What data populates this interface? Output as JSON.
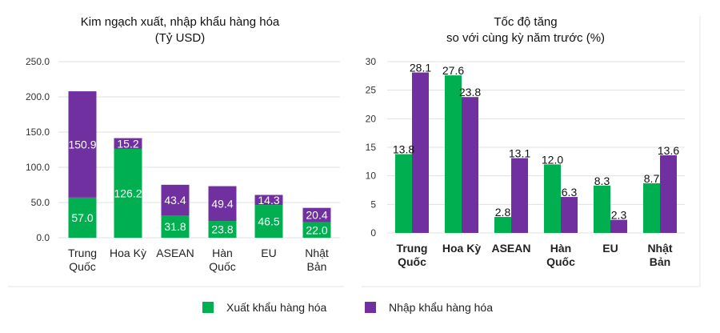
{
  "colors": {
    "export": "#00b050",
    "import": "#7030a0",
    "grid": "#e0e0e0"
  },
  "legend": {
    "export_label": "Xuất khẩu hàng hóa",
    "import_label": "Nhập khẩu hàng hóa",
    "placement": "bottom"
  },
  "chart_data": [
    {
      "type": "bar",
      "stacked": true,
      "title": [
        "Kim ngạch xuất, nhập khẩu hàng hóa",
        "(Tỷ USD)"
      ],
      "categories": [
        [
          "Trung",
          "Quốc"
        ],
        [
          "Hoa Kỳ"
        ],
        [
          "ASEAN"
        ],
        [
          "Hàn",
          "Quốc"
        ],
        [
          "EU"
        ],
        [
          "Nhật",
          "Bản"
        ]
      ],
      "series": [
        {
          "name": "Xuất khẩu hàng hóa",
          "values": [
            57.0,
            126.2,
            31.8,
            23.8,
            46.5,
            22.0
          ]
        },
        {
          "name": "Nhập khẩu hàng hóa",
          "values": [
            150.9,
            15.2,
            43.4,
            49.4,
            14.3,
            20.4
          ]
        }
      ],
      "ylim": [
        0,
        250
      ],
      "yticks": [
        "0.0",
        "50.0",
        "100.0",
        "150.0",
        "200.0",
        "250.0"
      ],
      "grid": true
    },
    {
      "type": "bar",
      "stacked": false,
      "title": [
        "Tốc độ tăng",
        "so với cùng kỳ năm trước (%)"
      ],
      "categories": [
        [
          "Trung",
          "Quốc"
        ],
        [
          "Hoa Kỳ"
        ],
        [
          "ASEAN"
        ],
        [
          "Hàn",
          "Quốc"
        ],
        [
          "EU"
        ],
        [
          "Nhật",
          "Bản"
        ]
      ],
      "series": [
        {
          "name": "Xuất khẩu hàng hóa",
          "values": [
            13.8,
            27.6,
            2.8,
            12.0,
            8.3,
            8.7
          ]
        },
        {
          "name": "Nhập khẩu hàng hóa",
          "values": [
            28.1,
            23.8,
            13.1,
            6.3,
            2.3,
            13.6
          ]
        }
      ],
      "ylim": [
        0,
        30
      ],
      "yticks": [
        "0",
        "5",
        "10",
        "15",
        "20",
        "25",
        "30"
      ],
      "grid": true
    }
  ]
}
